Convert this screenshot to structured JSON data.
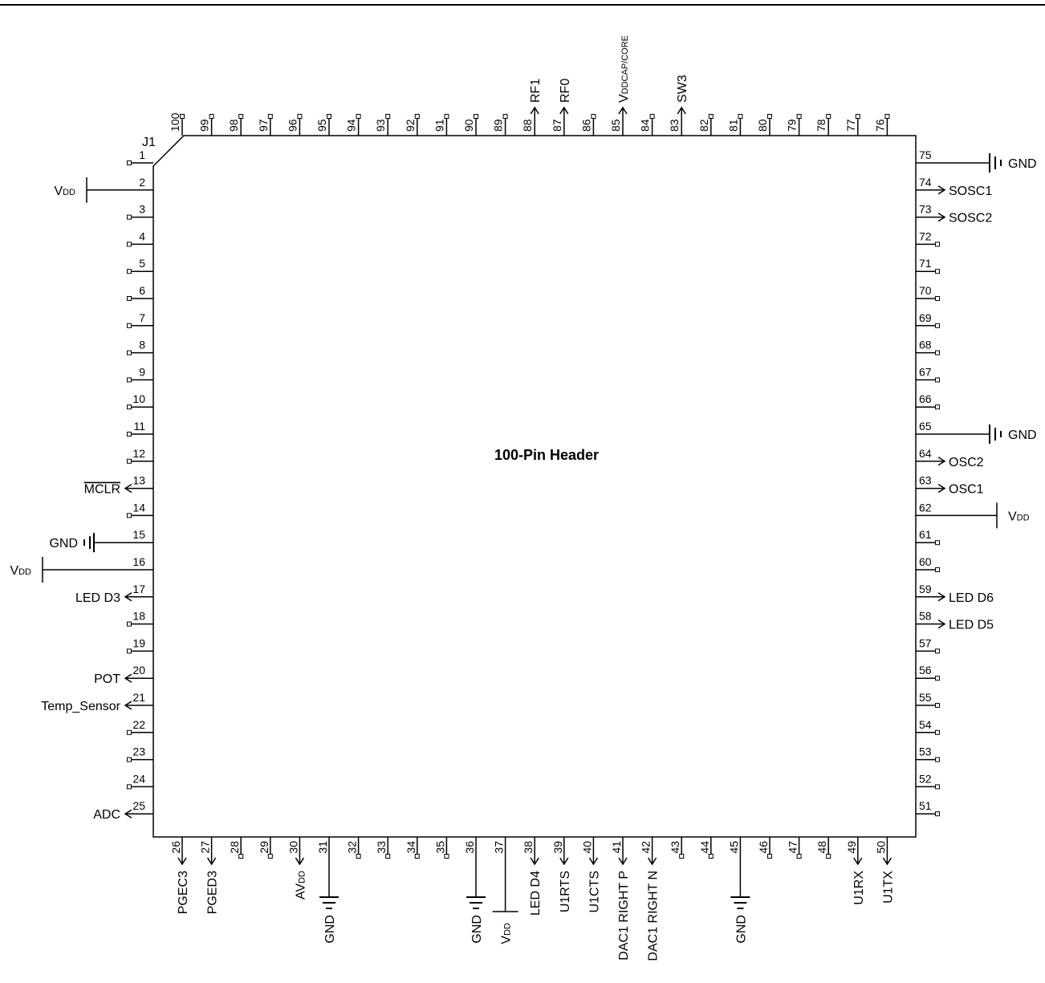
{
  "connector": {
    "ref": "J1",
    "title": "100-Pin Header"
  },
  "nets": {
    "left": [
      {
        "pin": "2",
        "kind": "supply",
        "label_main": "V",
        "label_sub": "DD"
      },
      {
        "pin": "13",
        "kind": "arrow",
        "label": "MCLR",
        "overline": true
      },
      {
        "pin": "15",
        "kind": "ground",
        "label": "GND"
      },
      {
        "pin": "16",
        "kind": "supply",
        "label_main": "V",
        "label_sub": "DD"
      },
      {
        "pin": "17",
        "kind": "arrow",
        "label": "LED D3"
      },
      {
        "pin": "20",
        "kind": "arrow",
        "label": "POT"
      },
      {
        "pin": "21",
        "kind": "arrow",
        "label": "Temp_Sensor"
      },
      {
        "pin": "25",
        "kind": "arrow",
        "label": "ADC"
      }
    ],
    "right": [
      {
        "pin": "75",
        "kind": "ground",
        "label": "GND"
      },
      {
        "pin": "74",
        "kind": "arrow",
        "label": "SOSC1"
      },
      {
        "pin": "73",
        "kind": "arrow",
        "label": "SOSC2"
      },
      {
        "pin": "65",
        "kind": "ground",
        "label": "GND"
      },
      {
        "pin": "64",
        "kind": "arrow",
        "label": "OSC2"
      },
      {
        "pin": "63",
        "kind": "arrow",
        "label": "OSC1"
      },
      {
        "pin": "62",
        "kind": "supply",
        "label_main": "V",
        "label_sub": "DD"
      },
      {
        "pin": "59",
        "kind": "arrow",
        "label": "LED D6"
      },
      {
        "pin": "58",
        "kind": "arrow",
        "label": "LED D5"
      }
    ],
    "top": [
      {
        "pin": "88",
        "kind": "arrow",
        "label": "RF1"
      },
      {
        "pin": "87",
        "kind": "arrow",
        "label": "RF0"
      },
      {
        "pin": "85",
        "kind": "arrow",
        "label_main": "V",
        "label_sub": "DDCAP/CORE"
      },
      {
        "pin": "83",
        "kind": "arrow",
        "label": "SW3"
      }
    ],
    "bottom": [
      {
        "pin": "26",
        "kind": "arrow",
        "label": "PGEC3"
      },
      {
        "pin": "27",
        "kind": "arrow",
        "label": "PGED3"
      },
      {
        "pin": "30",
        "kind": "arrow",
        "label_main": "AV",
        "label_sub": "DD"
      },
      {
        "pin": "31",
        "kind": "ground",
        "label": "GND"
      },
      {
        "pin": "36",
        "kind": "ground",
        "label": "GND"
      },
      {
        "pin": "37",
        "kind": "supply",
        "label_main": "V",
        "label_sub": "DD"
      },
      {
        "pin": "38",
        "kind": "arrow",
        "label": "LED D4"
      },
      {
        "pin": "39",
        "kind": "arrow",
        "label": "U1RTS"
      },
      {
        "pin": "40",
        "kind": "arrow",
        "label": "U1CTS"
      },
      {
        "pin": "41",
        "kind": "arrow",
        "label": "DAC1 RIGHT P"
      },
      {
        "pin": "42",
        "kind": "arrow",
        "label": "DAC1 RIGHT N"
      },
      {
        "pin": "45",
        "kind": "ground",
        "label": "GND"
      },
      {
        "pin": "49",
        "kind": "arrow",
        "label": "U1RX"
      },
      {
        "pin": "50",
        "kind": "arrow",
        "label": "U1TX"
      }
    ]
  }
}
